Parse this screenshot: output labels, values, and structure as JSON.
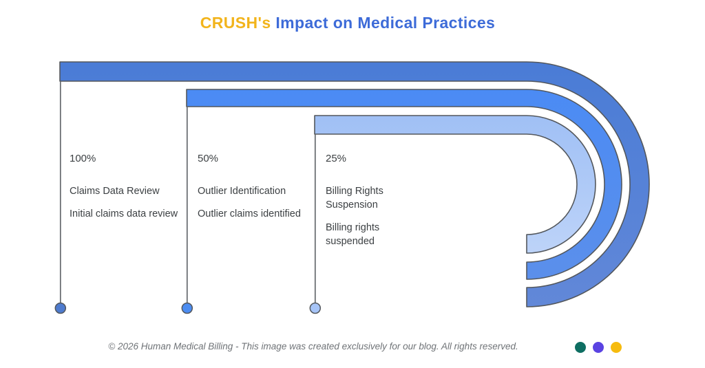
{
  "title": {
    "highlight": "CRUSH's",
    "rest": " Impact on Medical Practices",
    "highlight_color": "#F2B41C",
    "rest_color": "#3D6BD8"
  },
  "chart_data": {
    "type": "funnel-curve",
    "title": "CRUSH's Impact on Medical Practices",
    "unit": "%",
    "legend_position": "none",
    "grid": false,
    "series": [
      {
        "percent": "100%",
        "value": 100,
        "label": "Claims Data Review",
        "description": "Initial claims data review",
        "color": "#4A7CD6",
        "color_end": "#6288D8",
        "marker_color": "#4E7BCE"
      },
      {
        "percent": "50%",
        "value": 50,
        "label": "Outlier Identification",
        "description": "Outlier claims identified",
        "color": "#4B8BF4",
        "color_end": "#5E90E9",
        "marker_color": "#4C8DF2"
      },
      {
        "percent": "25%",
        "value": 25,
        "label": "Billing Rights Suspension",
        "description": "Billing rights suspended",
        "color": "#A0C0F5",
        "color_end": "#C9DBFA",
        "marker_color": "#A6C4F7"
      }
    ],
    "outline_color": "#53575C",
    "stem_color": "#64686C",
    "text_color": "#3C4043"
  },
  "footer": {
    "text": "© 2026 Human Medical Billing - This image was created exclusively for our blog. All rights reserved.",
    "dots": [
      {
        "name": "teal",
        "color": "#0E6E62"
      },
      {
        "name": "purple",
        "color": "#5A43E2"
      },
      {
        "name": "yellow",
        "color": "#F6BB0E"
      }
    ]
  }
}
